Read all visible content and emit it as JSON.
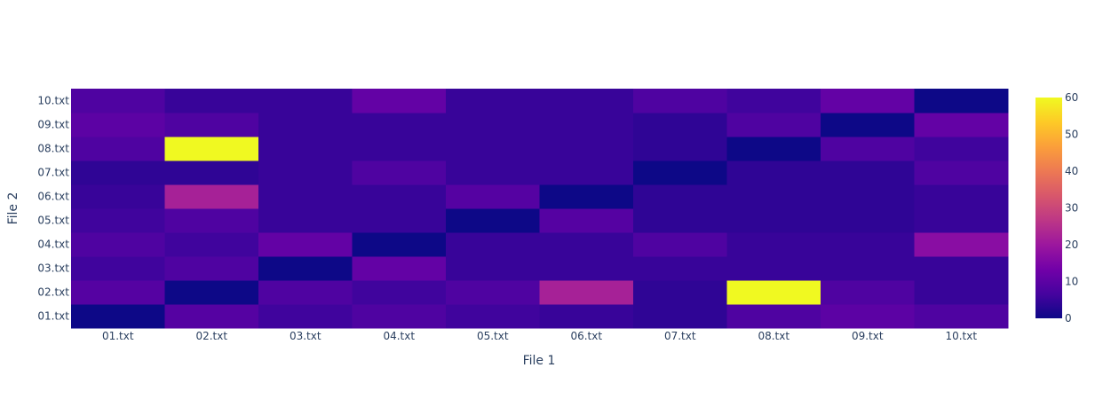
{
  "chart_data": {
    "type": "heatmap",
    "title": "",
    "xlabel": "File 1",
    "ylabel": "File 2",
    "x": [
      "01.txt",
      "02.txt",
      "03.txt",
      "04.txt",
      "05.txt",
      "06.txt",
      "07.txt",
      "08.txt",
      "09.txt",
      "10.txt"
    ],
    "y": [
      "01.txt",
      "02.txt",
      "03.txt",
      "04.txt",
      "05.txt",
      "06.txt",
      "07.txt",
      "08.txt",
      "09.txt",
      "10.txt"
    ],
    "z": [
      [
        0,
        9,
        6,
        8,
        6,
        5,
        4,
        8,
        10,
        8
      ],
      [
        9,
        0,
        8,
        6,
        8,
        22,
        4,
        60,
        8,
        5
      ],
      [
        6,
        8,
        0,
        11,
        5,
        5,
        5,
        5,
        5,
        5
      ],
      [
        8,
        6,
        11,
        0,
        5,
        5,
        8,
        5,
        5,
        17
      ],
      [
        6,
        8,
        5,
        5,
        0,
        9,
        4,
        4,
        4,
        5
      ],
      [
        5,
        22,
        5,
        5,
        9,
        0,
        4,
        4,
        4,
        5
      ],
      [
        4,
        4,
        5,
        8,
        5,
        5,
        0,
        4,
        4,
        8
      ],
      [
        8,
        60,
        5,
        5,
        5,
        5,
        4,
        0,
        8,
        6
      ],
      [
        10,
        8,
        5,
        5,
        5,
        5,
        4,
        8,
        0,
        11
      ],
      [
        8,
        5,
        5,
        11,
        5,
        5,
        8,
        6,
        11,
        0
      ]
    ],
    "zlim": [
      0,
      60
    ],
    "colorbar": {
      "ticks": [
        "0",
        "10",
        "20",
        "30",
        "40",
        "50",
        "60"
      ],
      "colors": [
        "#0d0887",
        "#46039f",
        "#7201a8",
        "#9c179e",
        "#bd3786",
        "#d8576b",
        "#ed7953",
        "#fb9f3a",
        "#fdca26",
        "#f0f921"
      ]
    },
    "grid": false,
    "legend": "colorbar-right"
  }
}
